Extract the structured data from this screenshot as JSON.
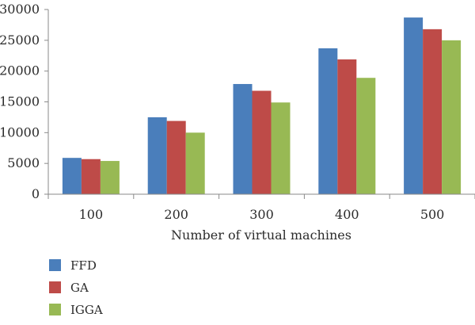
{
  "chart_data": {
    "type": "bar",
    "title": "",
    "xlabel": "Number of virtual machines",
    "ylabel": "",
    "categories": [
      "100",
      "200",
      "300",
      "400",
      "500"
    ],
    "series": [
      {
        "name": "FFD",
        "color": "#4a7ebb",
        "values": [
          5900,
          12500,
          17900,
          23700,
          28700
        ]
      },
      {
        "name": "GA",
        "color": "#be4b48",
        "values": [
          5700,
          11900,
          16800,
          21900,
          26800
        ]
      },
      {
        "name": "IGGA",
        "color": "#98b954",
        "values": [
          5400,
          10000,
          14900,
          18900,
          25000
        ]
      }
    ],
    "ylim": [
      0,
      30000
    ],
    "yticks": [
      "0",
      "5000",
      "10000",
      "15000",
      "20000",
      "25000",
      "30000"
    ],
    "grid": false,
    "legend_position": "bottom-left"
  }
}
